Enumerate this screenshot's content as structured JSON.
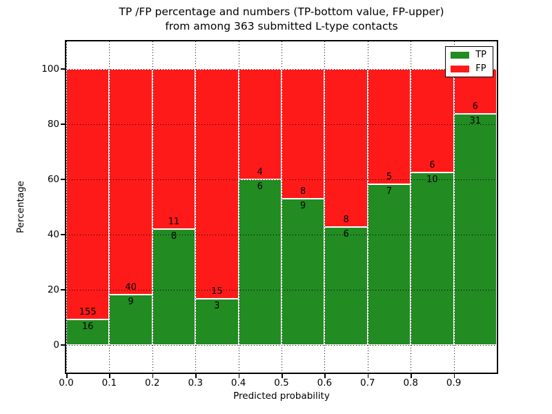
{
  "chart_data": {
    "type": "bar",
    "stacked": true,
    "title_line1": "TP /FP percentage and numbers (TP-bottom value, FP-upper)",
    "title_line2": "from among 363 submitted L-type contacts",
    "xlabel": "Predicted probability",
    "ylabel": "Percentage",
    "total_contacts": 363,
    "label_note": "TP count shown below segment boundary, FP count shown above",
    "x_tick_labels": [
      "0.0",
      "0.1",
      "0.2",
      "0.3",
      "0.4",
      "0.5",
      "0.6",
      "0.7",
      "0.8",
      "0.9"
    ],
    "y_tick_values": [
      0,
      20,
      40,
      60,
      80,
      100
    ],
    "xlim": [
      0.0,
      1.0
    ],
    "ylim": [
      -10,
      110
    ],
    "grid": "dotted",
    "colors": {
      "tp": "#228b22",
      "fp": "#ff1a1a",
      "bar_edge": "#ffffff",
      "text": "#000000"
    },
    "legend": {
      "position": "upper right",
      "entries": [
        {
          "label": "TP",
          "color": "#228b22"
        },
        {
          "label": "FP",
          "color": "#ff1a1a"
        }
      ]
    },
    "bars": [
      {
        "bin_start": 0.0,
        "bin_end": 0.1,
        "tp": 16,
        "fp": 155
      },
      {
        "bin_start": 0.1,
        "bin_end": 0.2,
        "tp": 9,
        "fp": 40
      },
      {
        "bin_start": 0.2,
        "bin_end": 0.3,
        "tp": 8,
        "fp": 11
      },
      {
        "bin_start": 0.3,
        "bin_end": 0.4,
        "tp": 3,
        "fp": 15
      },
      {
        "bin_start": 0.4,
        "bin_end": 0.5,
        "tp": 6,
        "fp": 4
      },
      {
        "bin_start": 0.5,
        "bin_end": 0.6,
        "tp": 9,
        "fp": 8
      },
      {
        "bin_start": 0.6,
        "bin_end": 0.7,
        "tp": 6,
        "fp": 8
      },
      {
        "bin_start": 0.7,
        "bin_end": 0.8,
        "tp": 7,
        "fp": 5
      },
      {
        "bin_start": 0.8,
        "bin_end": 0.9,
        "tp": 10,
        "fp": 6
      },
      {
        "bin_start": 0.9,
        "bin_end": 1.0,
        "tp": 31,
        "fp": 6
      }
    ]
  }
}
